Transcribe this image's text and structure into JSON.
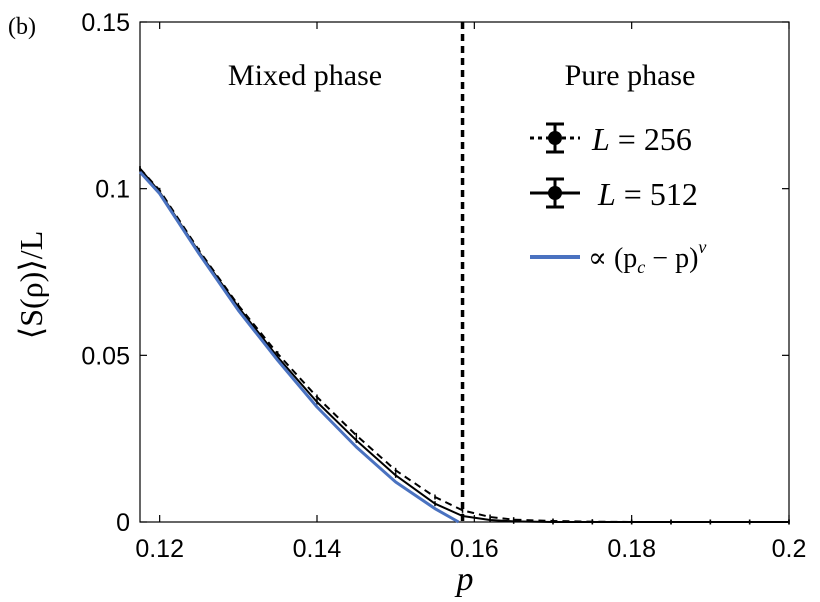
{
  "panel_label": "(b)",
  "chart_data": {
    "type": "line",
    "title": "",
    "xlabel": "p",
    "ylabel": "⟨S(ρ)⟩/L",
    "xlim": [
      0.1175,
      0.2
    ],
    "ylim": [
      0,
      0.15
    ],
    "x_ticks": [
      0.12,
      0.14,
      0.16,
      0.18,
      0.2
    ],
    "x_tick_labels": [
      "0.12",
      "0.14",
      "0.16",
      "0.18",
      "0.2"
    ],
    "y_ticks": [
      0,
      0.05,
      0.1,
      0.15
    ],
    "y_tick_labels": [
      "0",
      "0.05",
      "0.1",
      "0.15"
    ],
    "grid": false,
    "legend_position": "top-right",
    "critical_point": 0.1585,
    "region_labels": [
      {
        "text": "Mixed phase"
      },
      {
        "text": "Pure phase"
      }
    ],
    "series": [
      {
        "name": "L = 256",
        "label_var": "L",
        "label_value": "256",
        "style": "dotted-with-errorbars",
        "color": "#000000",
        "x": [
          0.1175,
          0.12,
          0.125,
          0.13,
          0.135,
          0.14,
          0.145,
          0.15,
          0.155,
          0.1585,
          0.162,
          0.165,
          0.17,
          0.175,
          0.18,
          0.185,
          0.19,
          0.195,
          0.2
        ],
        "y": [
          0.106,
          0.0995,
          0.0815,
          0.065,
          0.0505,
          0.0375,
          0.026,
          0.0155,
          0.0075,
          0.0035,
          0.0015,
          0.0007,
          0.0003,
          0.0001,
          0.0,
          0.0,
          0.0,
          0.0,
          0.0
        ]
      },
      {
        "name": "L = 512",
        "label_var": "L",
        "label_value": "512",
        "style": "solid-with-errorbars",
        "color": "#000000",
        "x": [
          0.1175,
          0.12,
          0.125,
          0.13,
          0.135,
          0.14,
          0.145,
          0.15,
          0.155,
          0.1585,
          0.162,
          0.165,
          0.17,
          0.175,
          0.18,
          0.185,
          0.19,
          0.195,
          0.2
        ],
        "y": [
          0.106,
          0.099,
          0.081,
          0.0645,
          0.0495,
          0.036,
          0.0245,
          0.014,
          0.0055,
          0.0018,
          0.0006,
          0.0002,
          0.0,
          0.0,
          0.0,
          0.0,
          0.0,
          0.0,
          0.0
        ]
      },
      {
        "name": "∝ (p_c − p)^ν",
        "label_prefix": "∝ (p",
        "label_sub": "c",
        "label_mid": " − p)",
        "label_sup": "ν",
        "style": "solid",
        "color": "#4a72c0",
        "x": [
          0.1175,
          0.12,
          0.125,
          0.13,
          0.135,
          0.14,
          0.145,
          0.15,
          0.155,
          0.158
        ],
        "y": [
          0.105,
          0.0985,
          0.0805,
          0.0635,
          0.0485,
          0.0345,
          0.0225,
          0.012,
          0.004,
          0.0
        ]
      }
    ]
  }
}
